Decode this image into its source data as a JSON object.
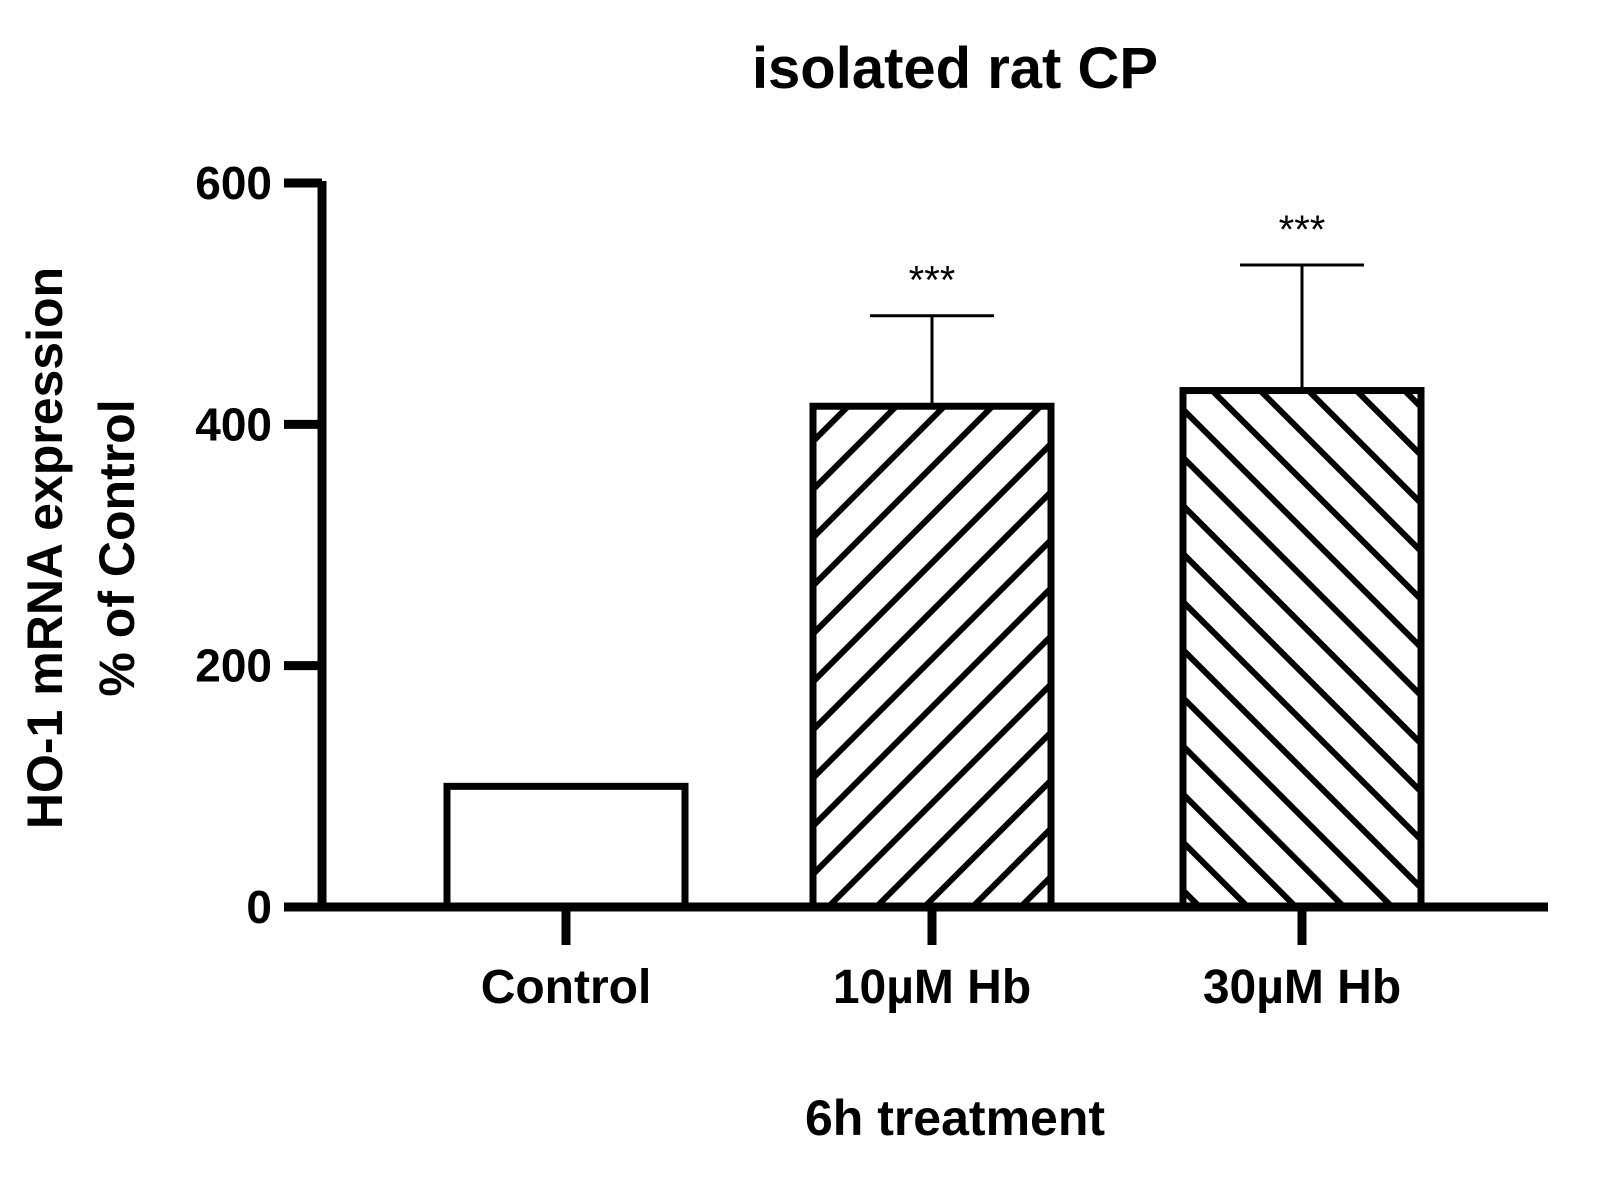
{
  "chart_data": {
    "type": "bar",
    "title": "isolated rat CP",
    "xlabel": "6h treatment",
    "ylabel": [
      "HO-1 mRNA expression",
      "% of Control"
    ],
    "ylim": [
      0,
      600
    ],
    "yticks": [
      0,
      200,
      400,
      600
    ],
    "ytick_labels": [
      "0",
      "200",
      "400",
      "600"
    ],
    "categories": [
      "Control",
      "10µM Hb",
      "30µM Hb"
    ],
    "values": [
      100,
      415,
      428
    ],
    "error_upper": [
      100,
      490,
      532
    ],
    "annotations": [
      "",
      "***",
      "***"
    ],
    "patterns": [
      "none",
      "diagonal-right",
      "diagonal-left"
    ],
    "colors": {
      "stroke": "#000000",
      "fill": "#ffffff"
    }
  }
}
